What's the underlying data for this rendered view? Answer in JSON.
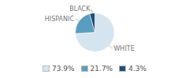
{
  "chart_data": {
    "type": "pie",
    "categories": [
      "WHITE",
      "HISPANIC",
      "BLACK"
    ],
    "values": [
      73.9,
      21.7,
      4.3
    ],
    "colors": [
      "#d6e4f0",
      "#5b9dbf",
      "#1f4e79"
    ],
    "value_labels": [
      "73.9%",
      "21.7%",
      "4.3%"
    ],
    "legend": "bottom"
  }
}
